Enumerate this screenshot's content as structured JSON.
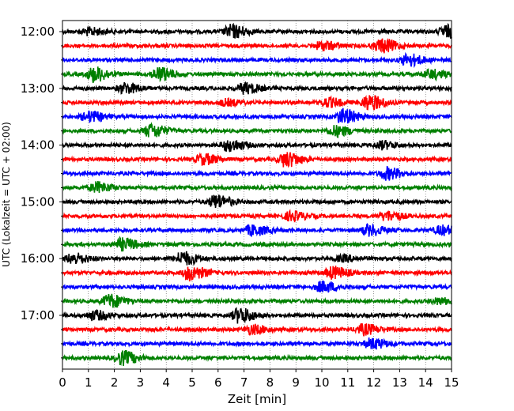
{
  "chart_data": {
    "type": "line",
    "title": "",
    "xlabel": "Zeit  [min]",
    "ylabel": "UTC (Lokalzeit = UTC + 02:00)",
    "xlim": [
      0,
      15
    ],
    "x_ticks": [
      0,
      1,
      2,
      3,
      4,
      5,
      6,
      7,
      8,
      9,
      10,
      11,
      12,
      13,
      14,
      15
    ],
    "x_tick_labels": [
      "0",
      "1",
      "2",
      "3",
      "4",
      "5",
      "6",
      "7",
      "8",
      "9",
      "10",
      "11",
      "12",
      "13",
      "14",
      "15"
    ],
    "y_tick_labels": [
      "12:00",
      "13:00",
      "14:00",
      "15:00",
      "16:00",
      "17:00"
    ],
    "grid": "vertical dotted lines at each minute",
    "trace_colors": [
      "#000000",
      "#ff0000",
      "#0000ff",
      "#008000"
    ],
    "traces_per_hour": 4,
    "trace_interval_minutes": 15,
    "traces": [
      {
        "start": "12:00",
        "color": "black",
        "events": [
          [
            1.0,
            0.5
          ],
          [
            6.5,
            0.9
          ],
          [
            14.8,
            0.8
          ]
        ]
      },
      {
        "start": "12:15",
        "color": "red",
        "events": [
          [
            10.0,
            0.6
          ],
          [
            12.3,
            0.9
          ]
        ]
      },
      {
        "start": "12:30",
        "color": "blue",
        "events": [
          [
            13.3,
            0.8
          ]
        ]
      },
      {
        "start": "12:45",
        "color": "green",
        "events": [
          [
            1.2,
            1.0
          ],
          [
            3.7,
            0.9
          ],
          [
            14.2,
            0.6
          ]
        ]
      },
      {
        "start": "13:00",
        "color": "black",
        "events": [
          [
            2.4,
            0.7
          ],
          [
            7.0,
            0.7
          ]
        ]
      },
      {
        "start": "13:15",
        "color": "red",
        "events": [
          [
            6.3,
            0.4
          ],
          [
            10.2,
            0.6
          ],
          [
            11.8,
            1.0
          ]
        ]
      },
      {
        "start": "13:30",
        "color": "blue",
        "events": [
          [
            1.0,
            0.7
          ],
          [
            10.8,
            1.0
          ]
        ]
      },
      {
        "start": "13:45",
        "color": "green",
        "events": [
          [
            3.4,
            0.9
          ],
          [
            10.5,
            0.7
          ]
        ]
      },
      {
        "start": "14:00",
        "color": "black",
        "events": [
          [
            6.4,
            0.8
          ],
          [
            12.3,
            0.5
          ]
        ]
      },
      {
        "start": "14:15",
        "color": "red",
        "events": [
          [
            5.4,
            0.7
          ],
          [
            8.6,
            1.0
          ]
        ]
      },
      {
        "start": "14:30",
        "color": "blue",
        "events": [
          [
            12.5,
            0.8
          ]
        ]
      },
      {
        "start": "14:45",
        "color": "green",
        "events": [
          [
            1.3,
            0.7
          ]
        ]
      },
      {
        "start": "15:00",
        "color": "black",
        "events": [
          [
            5.9,
            0.9
          ]
        ]
      },
      {
        "start": "15:15",
        "color": "red",
        "events": [
          [
            8.8,
            0.6
          ],
          [
            12.5,
            0.6
          ]
        ]
      },
      {
        "start": "15:30",
        "color": "blue",
        "events": [
          [
            7.3,
            0.7
          ],
          [
            11.8,
            0.7
          ],
          [
            14.6,
            0.6
          ]
        ]
      },
      {
        "start": "15:45",
        "color": "green",
        "events": [
          [
            2.3,
            0.8
          ]
        ]
      },
      {
        "start": "16:00",
        "color": "black",
        "events": [
          [
            0.4,
            0.7
          ],
          [
            4.6,
            0.9
          ],
          [
            10.8,
            0.4
          ]
        ]
      },
      {
        "start": "16:15",
        "color": "red",
        "events": [
          [
            4.9,
            1.0
          ],
          [
            10.4,
            0.8
          ]
        ]
      },
      {
        "start": "16:30",
        "color": "blue",
        "events": [
          [
            10.0,
            0.7
          ]
        ]
      },
      {
        "start": "16:45",
        "color": "green",
        "events": [
          [
            1.8,
            0.9
          ],
          [
            14.5,
            0.4
          ]
        ]
      },
      {
        "start": "17:00",
        "color": "black",
        "events": [
          [
            1.2,
            0.6
          ],
          [
            6.8,
            1.0
          ]
        ]
      },
      {
        "start": "17:15",
        "color": "red",
        "events": [
          [
            7.3,
            0.6
          ],
          [
            11.6,
            0.7
          ]
        ]
      },
      {
        "start": "17:30",
        "color": "blue",
        "events": [
          [
            11.9,
            0.7
          ]
        ]
      },
      {
        "start": "17:45",
        "color": "green",
        "events": [
          [
            2.3,
            0.9
          ]
        ]
      }
    ]
  }
}
